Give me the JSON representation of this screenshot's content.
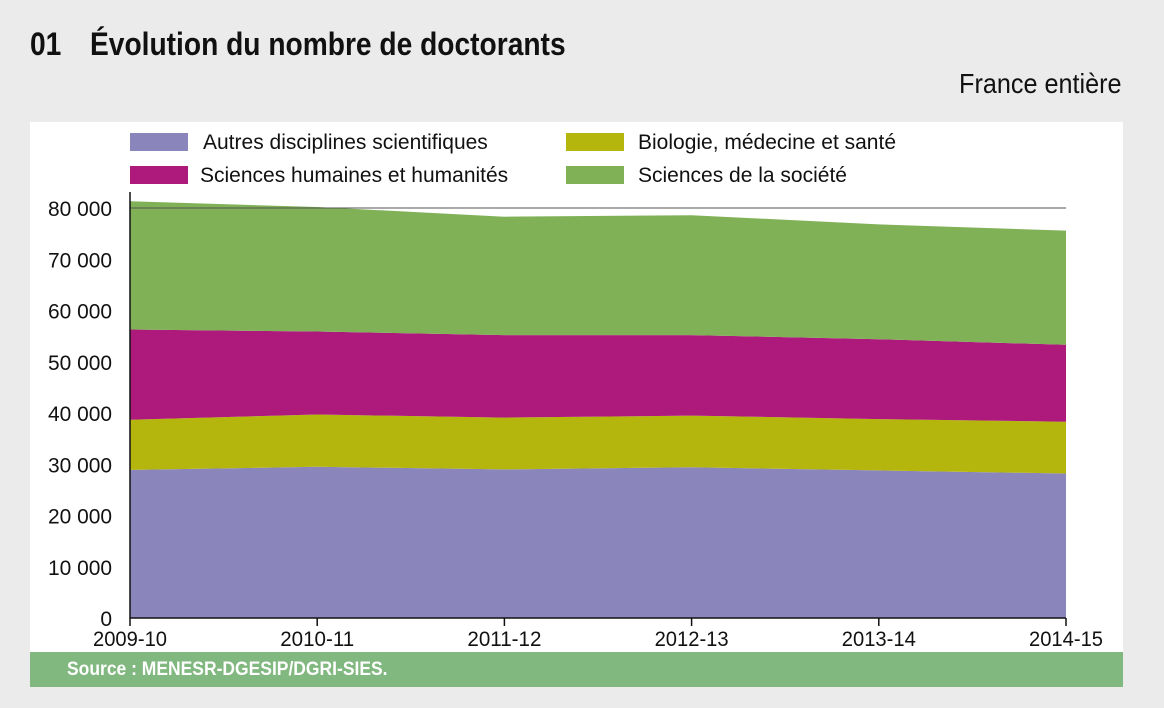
{
  "header": {
    "number": "01",
    "title": "Évolution du nombre de doctorants",
    "subtitle": "France entière"
  },
  "footer": {
    "source": "Source : MENESR-DGESIP/DGRI-SIES."
  },
  "chart_data": {
    "type": "area",
    "stacked": true,
    "x": [
      "2009-10",
      "2010-11",
      "2011-12",
      "2012-13",
      "2013-14",
      "2014-15"
    ],
    "ylim": [
      0,
      80000
    ],
    "yticks": [
      0,
      10000,
      20000,
      30000,
      40000,
      50000,
      60000,
      70000,
      80000
    ],
    "ytick_labels": [
      "0",
      "10 000",
      "20 000",
      "30 000",
      "40 000",
      "50 000",
      "60 000",
      "70 000",
      "80 000"
    ],
    "grid": false,
    "legend_position": "top",
    "series": [
      {
        "name": "Autres disciplines scientifiques",
        "color": "#8a86bb",
        "values": [
          28900,
          29500,
          29000,
          29400,
          28800,
          28200
        ]
      },
      {
        "name": "Biologie, médecine et santé",
        "color": "#b4b60e",
        "values": [
          9800,
          10200,
          10100,
          10100,
          10000,
          10100
        ]
      },
      {
        "name": "Sciences humaines et humanités",
        "color": "#ad1a7c",
        "values": [
          17600,
          16200,
          16100,
          15700,
          15600,
          15000
        ]
      },
      {
        "name": "Sciences de la société",
        "color": "#80b157",
        "values": [
          25000,
          24300,
          23100,
          23400,
          22400,
          22300
        ]
      }
    ]
  }
}
